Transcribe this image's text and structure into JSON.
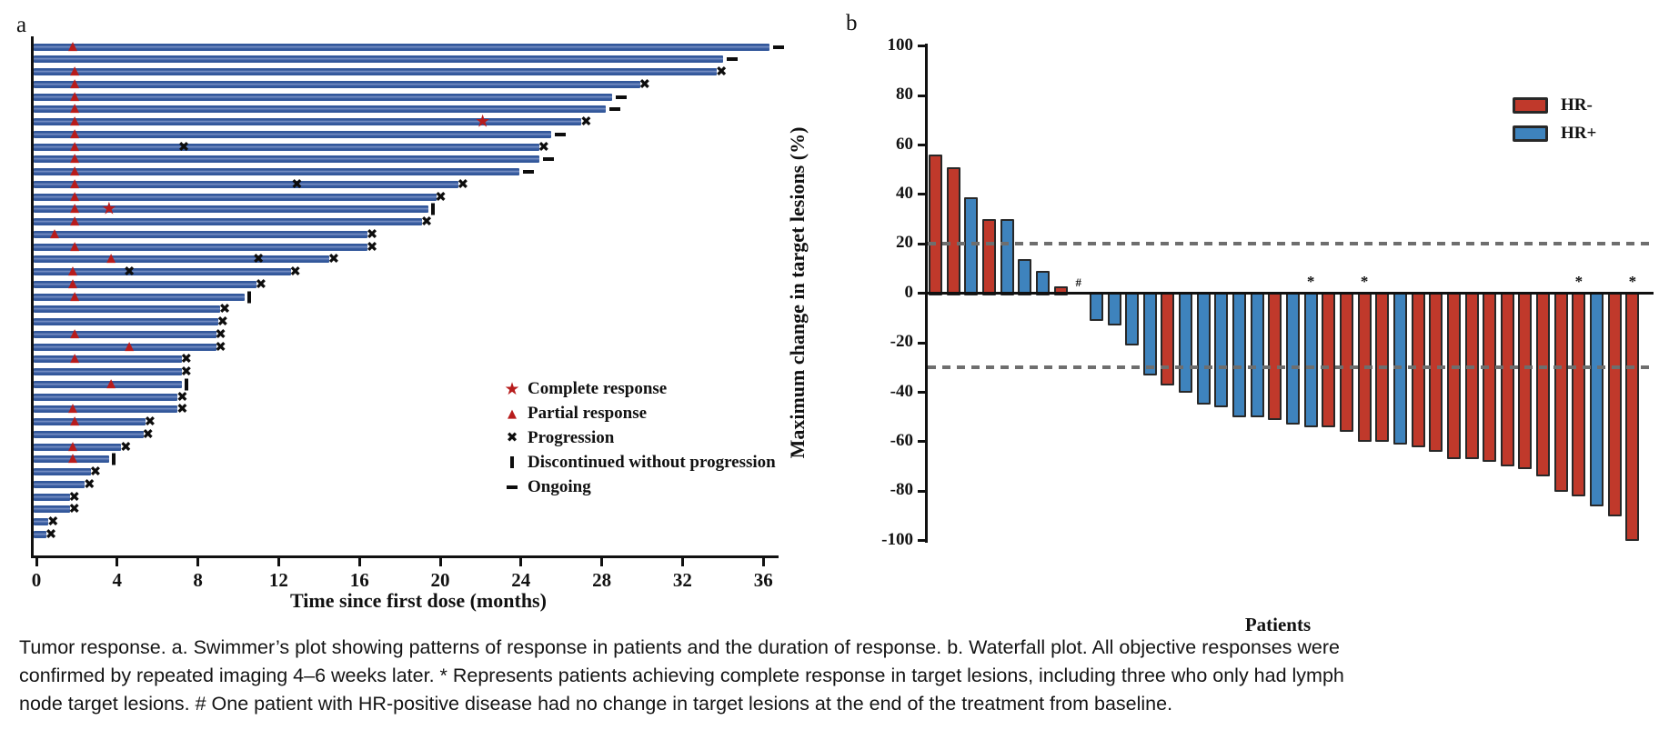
{
  "panel_a": {
    "label": "a",
    "x_axis_title": "Time since first dose (months)",
    "x_ticks": [
      0,
      4,
      8,
      12,
      16,
      20,
      24,
      28,
      32,
      36
    ],
    "legend": [
      {
        "icon": "star-icon",
        "label": "Complete response"
      },
      {
        "icon": "triangle-icon",
        "label": "Partial response"
      },
      {
        "icon": "x-icon",
        "label": "Progression"
      },
      {
        "icon": "bar-icon",
        "label": "Discontinued without progression"
      },
      {
        "icon": "dash-icon",
        "label": "Ongoing"
      }
    ]
  },
  "panel_b": {
    "label": "b",
    "y_axis_title": "Maximum change in target lesions (%)",
    "x_axis_title": "Patients",
    "y_ticks": [
      100,
      80,
      60,
      40,
      20,
      0,
      -20,
      -40,
      -60,
      -80,
      -100
    ],
    "reference_lines": [
      20,
      -30
    ],
    "legend": [
      {
        "color": "#C0392B",
        "label": "HR-"
      },
      {
        "color": "#3E83BD",
        "label": "HR+"
      }
    ]
  },
  "colors": {
    "swimmer_bar": "#33589B",
    "response_red": "#B71C1C",
    "hr_negative": "#C0392B",
    "hr_positive": "#3E83BD",
    "dashed_reference": "#6E6E6E",
    "axis": "#111111"
  },
  "chart_data": [
    {
      "type": "swimmer",
      "title": "Swimmer's plot of response patterns and duration",
      "xlabel": "Time since first dose (months)",
      "x_unit": "months",
      "xlim": [
        0,
        38
      ],
      "x_ticks": [
        0,
        4,
        8,
        12,
        16,
        20,
        24,
        28,
        32,
        36
      ],
      "marker_meanings": {
        "cr": "Complete response (red star)",
        "pr": "Partial response (red triangle)",
        "prog": "Progression (black x)",
        "discontinued": "Discontinued without progression (vertical bar)",
        "ongoing": "Ongoing (dash at bar end)"
      },
      "patients": [
        {
          "duration": 36.3,
          "pr": 1.8,
          "end": "ongoing"
        },
        {
          "duration": 34.0,
          "end": "ongoing"
        },
        {
          "duration": 33.7,
          "pr": 1.9,
          "end": "progression"
        },
        {
          "duration": 29.9,
          "pr": 1.9,
          "end": "progression"
        },
        {
          "duration": 28.5,
          "pr": 1.9,
          "end": "ongoing"
        },
        {
          "duration": 28.2,
          "pr": 1.9,
          "end": "ongoing"
        },
        {
          "duration": 27.0,
          "pr": 1.9,
          "cr": 22.1,
          "end": "progression"
        },
        {
          "duration": 25.5,
          "pr": 1.9,
          "end": "ongoing"
        },
        {
          "duration": 24.9,
          "pr": 1.9,
          "prog": [
            7.3
          ],
          "end": "progression"
        },
        {
          "duration": 24.9,
          "pr": 1.9,
          "end": "ongoing"
        },
        {
          "duration": 23.9,
          "pr": 1.9,
          "end": "ongoing"
        },
        {
          "duration": 20.9,
          "pr": 1.9,
          "prog": [
            12.9
          ],
          "end": "progression"
        },
        {
          "duration": 19.8,
          "pr": 1.9,
          "end": "progression"
        },
        {
          "duration": 19.4,
          "pr": 1.9,
          "cr": 3.6,
          "end": "discontinued"
        },
        {
          "duration": 19.1,
          "pr": 1.9,
          "end": "progression"
        },
        {
          "duration": 16.4,
          "pr": 0.9,
          "end": "progression"
        },
        {
          "duration": 16.4,
          "pr": 1.9,
          "end": "progression"
        },
        {
          "duration": 14.5,
          "pr": 3.7,
          "prog": [
            11.0
          ],
          "end": "progression"
        },
        {
          "duration": 12.6,
          "pr": 1.8,
          "prog": [
            4.6
          ],
          "end": "progression"
        },
        {
          "duration": 10.9,
          "pr": 1.8,
          "end": "progression"
        },
        {
          "duration": 10.3,
          "pr": 1.9,
          "end": "discontinued"
        },
        {
          "duration": 9.1,
          "end": "progression"
        },
        {
          "duration": 9.0,
          "end": "progression"
        },
        {
          "duration": 8.9,
          "pr": 1.9,
          "end": "progression"
        },
        {
          "duration": 8.9,
          "pr": 4.6,
          "end": "progression"
        },
        {
          "duration": 7.2,
          "pr": 1.9,
          "end": "progression"
        },
        {
          "duration": 7.2,
          "end": "progression"
        },
        {
          "duration": 7.2,
          "pr": 3.7,
          "end": "discontinued"
        },
        {
          "duration": 7.0,
          "end": "progression"
        },
        {
          "duration": 7.0,
          "pr": 1.8,
          "end": "progression"
        },
        {
          "duration": 5.4,
          "pr": 1.9,
          "end": "progression"
        },
        {
          "duration": 5.3,
          "end": "progression"
        },
        {
          "duration": 4.2,
          "pr": 1.8,
          "end": "progression"
        },
        {
          "duration": 3.6,
          "pr": 1.8,
          "end": "discontinued"
        },
        {
          "duration": 2.7,
          "end": "progression"
        },
        {
          "duration": 2.4,
          "end": "progression"
        },
        {
          "duration": 1.65,
          "end": "progression"
        },
        {
          "duration": 1.65,
          "end": "progression"
        },
        {
          "duration": 0.6,
          "end": "progression"
        },
        {
          "duration": 0.5,
          "end": "progression"
        }
      ]
    },
    {
      "type": "bar",
      "title": "Waterfall plot of maximum change in target lesions",
      "xlabel": "Patients",
      "ylabel": "Maximum change in target lesions (%)",
      "ylim": [
        -100,
        100
      ],
      "y_ticks": [
        100,
        80,
        60,
        40,
        20,
        0,
        -20,
        -40,
        -60,
        -80,
        -100
      ],
      "reference_lines": [
        20,
        -30
      ],
      "legend": [
        "HR-",
        "HR+"
      ],
      "bars": [
        {
          "value": 56,
          "group": "HR-"
        },
        {
          "value": 51,
          "group": "HR-"
        },
        {
          "value": 39,
          "group": "HR+"
        },
        {
          "value": 30,
          "group": "HR-"
        },
        {
          "value": 30,
          "group": "HR+"
        },
        {
          "value": 14,
          "group": "HR+"
        },
        {
          "value": 9,
          "group": "HR+"
        },
        {
          "value": 3,
          "group": "HR-"
        },
        {
          "value": 0,
          "group": "HR+",
          "annotation": "#"
        },
        {
          "value": -11,
          "group": "HR+"
        },
        {
          "value": -13,
          "group": "HR+"
        },
        {
          "value": -21,
          "group": "HR+"
        },
        {
          "value": -33,
          "group": "HR+"
        },
        {
          "value": -37,
          "group": "HR-"
        },
        {
          "value": -40,
          "group": "HR+"
        },
        {
          "value": -45,
          "group": "HR+"
        },
        {
          "value": -46,
          "group": "HR+"
        },
        {
          "value": -50,
          "group": "HR+"
        },
        {
          "value": -50,
          "group": "HR+"
        },
        {
          "value": -51,
          "group": "HR-"
        },
        {
          "value": -53,
          "group": "HR+"
        },
        {
          "value": -54,
          "group": "HR+",
          "annotation": "*"
        },
        {
          "value": -54,
          "group": "HR-"
        },
        {
          "value": -56,
          "group": "HR-"
        },
        {
          "value": -60,
          "group": "HR-",
          "annotation": "*"
        },
        {
          "value": -60,
          "group": "HR-"
        },
        {
          "value": -61,
          "group": "HR+"
        },
        {
          "value": -62,
          "group": "HR-"
        },
        {
          "value": -64,
          "group": "HR-"
        },
        {
          "value": -67,
          "group": "HR-"
        },
        {
          "value": -67,
          "group": "HR-"
        },
        {
          "value": -68,
          "group": "HR-"
        },
        {
          "value": -70,
          "group": "HR-"
        },
        {
          "value": -71,
          "group": "HR-"
        },
        {
          "value": -74,
          "group": "HR-"
        },
        {
          "value": -80,
          "group": "HR-"
        },
        {
          "value": -82,
          "group": "HR-",
          "annotation": "*"
        },
        {
          "value": -86,
          "group": "HR+"
        },
        {
          "value": -90,
          "group": "HR-"
        },
        {
          "value": -100,
          "group": "HR-",
          "annotation": "*"
        }
      ]
    }
  ],
  "caption_lines": [
    "Tumor response. a. Swimmer’s plot showing patterns of response in patients and the duration of response. b. Waterfall plot. All objective responses were",
    "confirmed by repeated imaging 4–6 weeks later. * Represents patients achieving complete response in target lesions, including three who only had lymph",
    "node target lesions. # One patient with HR-positive disease had no change in target lesions at the end of the treatment from baseline."
  ]
}
